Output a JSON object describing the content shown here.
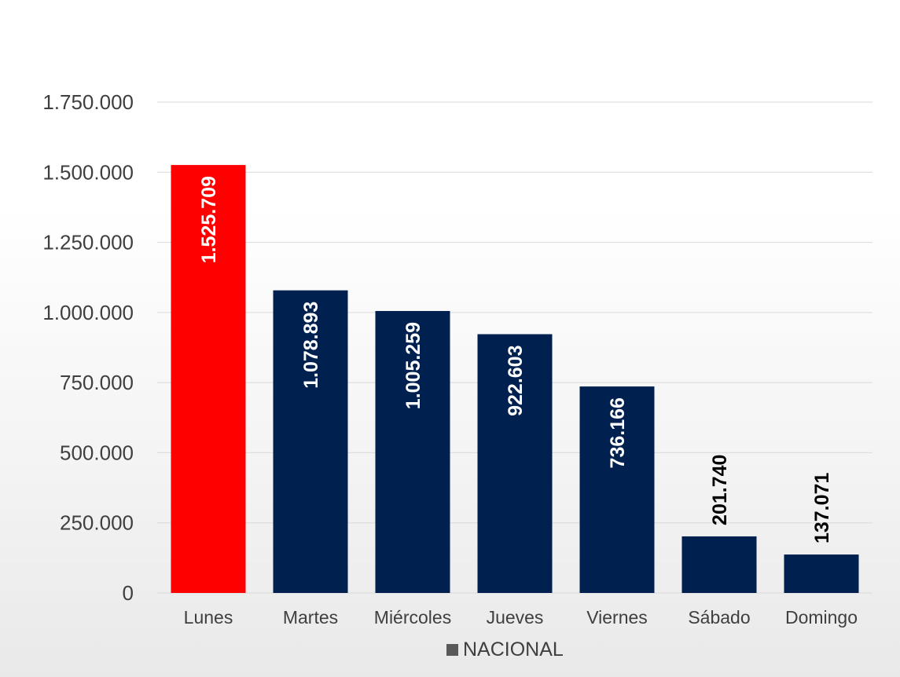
{
  "chart_data": {
    "type": "bar",
    "categories": [
      "Lunes",
      "Martes",
      "Miércoles",
      "Jueves",
      "Viernes",
      "Sábado",
      "Domingo"
    ],
    "series": [
      {
        "name": "NACIONAL",
        "values": [
          1525709,
          1078893,
          1005259,
          922603,
          736166,
          201740,
          137071
        ],
        "value_labels": [
          "1.525.709",
          "1.078.893",
          "1.005.259",
          "922.603",
          "736.166",
          "201.740",
          "137.071"
        ]
      }
    ],
    "highlight_index": 0,
    "colors": {
      "bar": "#002050",
      "highlight": "#ff0000",
      "grid": "#d9d9d9",
      "legend_marker": "#595959",
      "label_inside": "#ffffff",
      "label_outside": "#000000"
    },
    "ylim": [
      0,
      1750000
    ],
    "yticks": [
      0,
      250000,
      500000,
      750000,
      1000000,
      1250000,
      1500000,
      1750000
    ],
    "ytick_labels": [
      "0",
      "250.000",
      "500.000",
      "750.000",
      "1.000.000",
      "1.250.000",
      "1.500.000",
      "1.750.000"
    ],
    "grid": true,
    "legend": {
      "position": "bottom",
      "entries": [
        "NACIONAL"
      ]
    },
    "title": "",
    "xlabel": "",
    "ylabel": ""
  }
}
